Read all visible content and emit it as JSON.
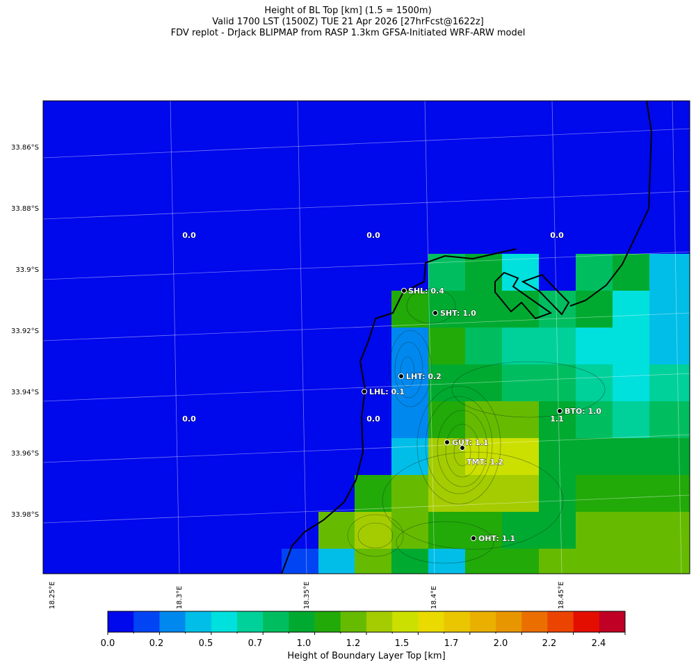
{
  "title": {
    "line1": "Height of BL Top [km] (1.5 = 1500m)",
    "line2": "Valid 1700 LST (1500Z) TUE 21 Apr 2026 [27hrFcst@1622z]",
    "line3": "FDV replot - DrJack BLIPMAP from RASP 1.3km GFSA-Initiated WRF-ARW model"
  },
  "latitude_labels": [
    "33.86°S",
    "33.88°S",
    "33.9°S",
    "33.92°S",
    "33.94°S",
    "33.96°S",
    "33.98°S"
  ],
  "longitude_labels": [
    "18.25°E",
    "18.3°E",
    "18.35°E",
    "18.4°E",
    "18.45°E"
  ],
  "grid_values": [
    {
      "id": "val-1",
      "text": "0.0"
    },
    {
      "id": "val-2",
      "text": "0.0"
    },
    {
      "id": "val-3",
      "text": "0.0"
    },
    {
      "id": "val-4",
      "text": "0.0"
    },
    {
      "id": "val-5",
      "text": "0.0"
    },
    {
      "id": "val-6",
      "text": "1.1"
    }
  ],
  "sites": [
    {
      "code": "SHL",
      "label": "SHL: 0.4",
      "value": 0.4
    },
    {
      "code": "SHT",
      "label": "SHT: 1.0",
      "value": 1.0
    },
    {
      "code": "LHT",
      "label": "LHT: 0.2",
      "value": 0.2
    },
    {
      "code": "LHL",
      "label": "LHL: 0.1",
      "value": 0.1
    },
    {
      "code": "BTO",
      "label": "BTO: 1.0",
      "value": 1.0
    },
    {
      "code": "GUT",
      "label": "GUT: 1.1",
      "value": 1.1
    },
    {
      "code": "TMT",
      "label": "TMT: 1.2",
      "value": 1.2
    },
    {
      "code": "OHT",
      "label": "OHT: 1.1",
      "value": 1.1
    }
  ],
  "colorbar": {
    "title": "Height of Boundary Layer Top [km]",
    "ticks": [
      "0.0",
      "0.2",
      "0.5",
      "0.7",
      "1.0",
      "1.2",
      "1.5",
      "1.7",
      "2.0",
      "2.2",
      "2.4"
    ],
    "colors": [
      "#0008ec",
      "#0044f4",
      "#0088ee",
      "#00bee8",
      "#00e0dc",
      "#00d09a",
      "#00be60",
      "#00aa30",
      "#22aa08",
      "#66bb00",
      "#a4cc00",
      "#cce000",
      "#eada00",
      "#eac600",
      "#eab000",
      "#e89600",
      "#ea6e00",
      "#ea4400",
      "#e40e00",
      "#c00024"
    ]
  }
}
